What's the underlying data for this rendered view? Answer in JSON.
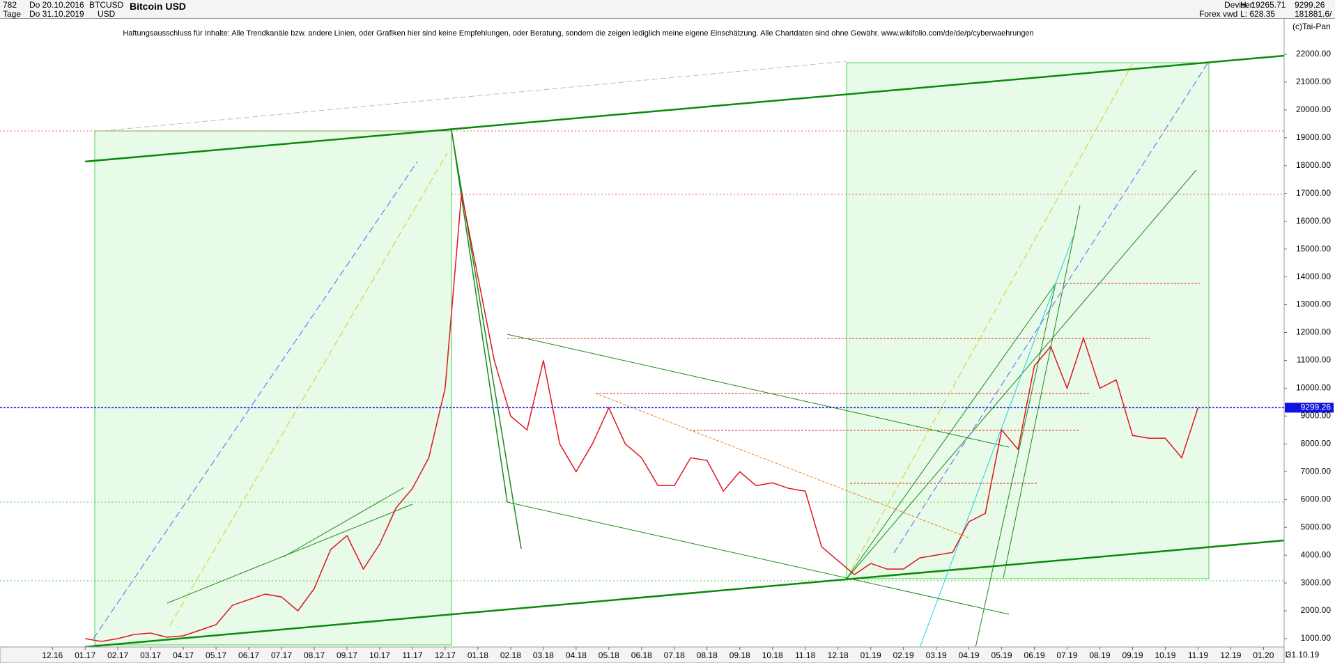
{
  "header": {
    "count": "782",
    "period": "Tage",
    "date_from": "Do 20.10.2016",
    "date_to": "Do 31.10.2019",
    "symbol": "BTCUSD",
    "currency": "USD",
    "name": "Bitcoin USD",
    "market": "Devisen",
    "source": "Forex vwd",
    "high": "H: 19265.71",
    "low": "L: 628.35",
    "last": "9299.26",
    "volume": "181881.6/",
    "copyright": "(c)Tai-Pan"
  },
  "chart_data": {
    "type": "line",
    "subtitle": "Haftungsausschluss für Inhalte: Alle Trendkanäle bzw. andere Linien, oder Grafiken hier sind keine Empfehlungen, oder Beratung, sondern die zeigen lediglich meine eigene Einschätzung. Alle Chartdaten sind ohne Gewähr.  www.wikifolio.com/de/de/p/cyberwaehrungen",
    "x": [
      1.0,
      1.5,
      2.0,
      2.5,
      3.0,
      3.5,
      4.0,
      4.5,
      5.0,
      5.5,
      6.0,
      6.5,
      7.0,
      7.5,
      8.0,
      8.5,
      9.0,
      9.5,
      10.0,
      10.5,
      11.0,
      11.5,
      12.0,
      12.5,
      13.0,
      13.5,
      14.0,
      14.5,
      15.0,
      15.5,
      16.0,
      16.5,
      17.0,
      17.5,
      18.0,
      18.5,
      19.0,
      19.5,
      20.0,
      20.5,
      21.0,
      21.5,
      22.0,
      22.5,
      23.0,
      23.5,
      24.0,
      24.5,
      25.0,
      25.5,
      26.0,
      26.5,
      27.0,
      27.5,
      28.0,
      28.5,
      29.0,
      29.5,
      30.0,
      30.5,
      31.0,
      31.5,
      32.0,
      32.5,
      33.0,
      33.5,
      34.0,
      34.5,
      35.0
    ],
    "values": [
      1000,
      900,
      1000,
      1150,
      1200,
      1050,
      1100,
      1300,
      1500,
      2200,
      2400,
      2600,
      2500,
      2000,
      2800,
      4200,
      4700,
      3500,
      4400,
      5700,
      6400,
      7500,
      10000,
      17000,
      14000,
      11000,
      9000,
      8500,
      11000,
      8000,
      7000,
      8000,
      9300,
      8000,
      7500,
      6500,
      6500,
      7500,
      7400,
      6300,
      7000,
      6500,
      6600,
      6400,
      6300,
      4300,
      3800,
      3300,
      3700,
      3500,
      3500,
      3900,
      4000,
      4100,
      5200,
      5500,
      8500,
      7800,
      10800,
      11500,
      10000,
      11800,
      10000,
      10300,
      8300,
      8200,
      8200,
      7500,
      9300
    ],
    "color": "#e0141e",
    "last_value": 9299.26,
    "last_color": "#1010e0",
    "xlim": [
      -1.6,
      37.63
    ],
    "ylim": [
      700,
      23350
    ],
    "xticks": [
      {
        "value": 0,
        "label": "12.16"
      },
      {
        "value": 1,
        "label": "01.17"
      },
      {
        "value": 2,
        "label": "02.17"
      },
      {
        "value": 3,
        "label": "03.17"
      },
      {
        "value": 4,
        "label": "04.17"
      },
      {
        "value": 5,
        "label": "05.17"
      },
      {
        "value": 6,
        "label": "06.17"
      },
      {
        "value": 7,
        "label": "07.17"
      },
      {
        "value": 8,
        "label": "08.17"
      },
      {
        "value": 9,
        "label": "09.17"
      },
      {
        "value": 10,
        "label": "10.17"
      },
      {
        "value": 11,
        "label": "11.17"
      },
      {
        "value": 12,
        "label": "12.17"
      },
      {
        "value": 13,
        "label": "01.18"
      },
      {
        "value": 14,
        "label": "02.18"
      },
      {
        "value": 15,
        "label": "03.18"
      },
      {
        "value": 16,
        "label": "04.18"
      },
      {
        "value": 17,
        "label": "05.18"
      },
      {
        "value": 18,
        "label": "06.18"
      },
      {
        "value": 19,
        "label": "07.18"
      },
      {
        "value": 20,
        "label": "08.18"
      },
      {
        "value": 21,
        "label": "09.18"
      },
      {
        "value": 22,
        "label": "10.18"
      },
      {
        "value": 23,
        "label": "11.18"
      },
      {
        "value": 24,
        "label": "12.18"
      },
      {
        "value": 25,
        "label": "01.19"
      },
      {
        "value": 26,
        "label": "02.19"
      },
      {
        "value": 27,
        "label": "03.19"
      },
      {
        "value": 28,
        "label": "04.19"
      },
      {
        "value": 29,
        "label": "05.19"
      },
      {
        "value": 30,
        "label": "06.19"
      },
      {
        "value": 31,
        "label": "07.19"
      },
      {
        "value": 32,
        "label": "08.19"
      },
      {
        "value": 33,
        "label": "09.19"
      },
      {
        "value": 34,
        "label": "10.19"
      },
      {
        "value": 35,
        "label": "11.19"
      },
      {
        "value": 36,
        "label": "12.19"
      },
      {
        "value": 37,
        "label": "01.20"
      }
    ],
    "x_end_label": "31.10.19",
    "x_end_mark": "L",
    "yticks": [
      {
        "value": 1000,
        "label": "1000.00"
      },
      {
        "value": 2000,
        "label": "2000.00"
      },
      {
        "value": 3000,
        "label": "3000.00"
      },
      {
        "value": 4000,
        "label": "4000.00"
      },
      {
        "value": 5000,
        "label": "5000.00"
      },
      {
        "value": 6000,
        "label": "6000.00"
      },
      {
        "value": 7000,
        "label": "7000.00"
      },
      {
        "value": 8000,
        "label": "8000.00"
      },
      {
        "value": 9000,
        "label": "9000.00"
      },
      {
        "value": 10000,
        "label": "10000.00"
      },
      {
        "value": 11000,
        "label": "11000.00"
      },
      {
        "value": 12000,
        "label": "12000.00"
      },
      {
        "value": 13000,
        "label": "13000.00"
      },
      {
        "value": 14000,
        "label": "14000.00"
      },
      {
        "value": 15000,
        "label": "15000.00"
      },
      {
        "value": 16000,
        "label": "16000.00"
      },
      {
        "value": 17000,
        "label": "17000.00"
      },
      {
        "value": 18000,
        "label": "18000.00"
      },
      {
        "value": 19000,
        "label": "19000.00"
      },
      {
        "value": 20000,
        "label": "20000.00"
      },
      {
        "value": 21000,
        "label": "21000.00"
      },
      {
        "value": 22000,
        "label": "22000.00"
      }
    ]
  }
}
